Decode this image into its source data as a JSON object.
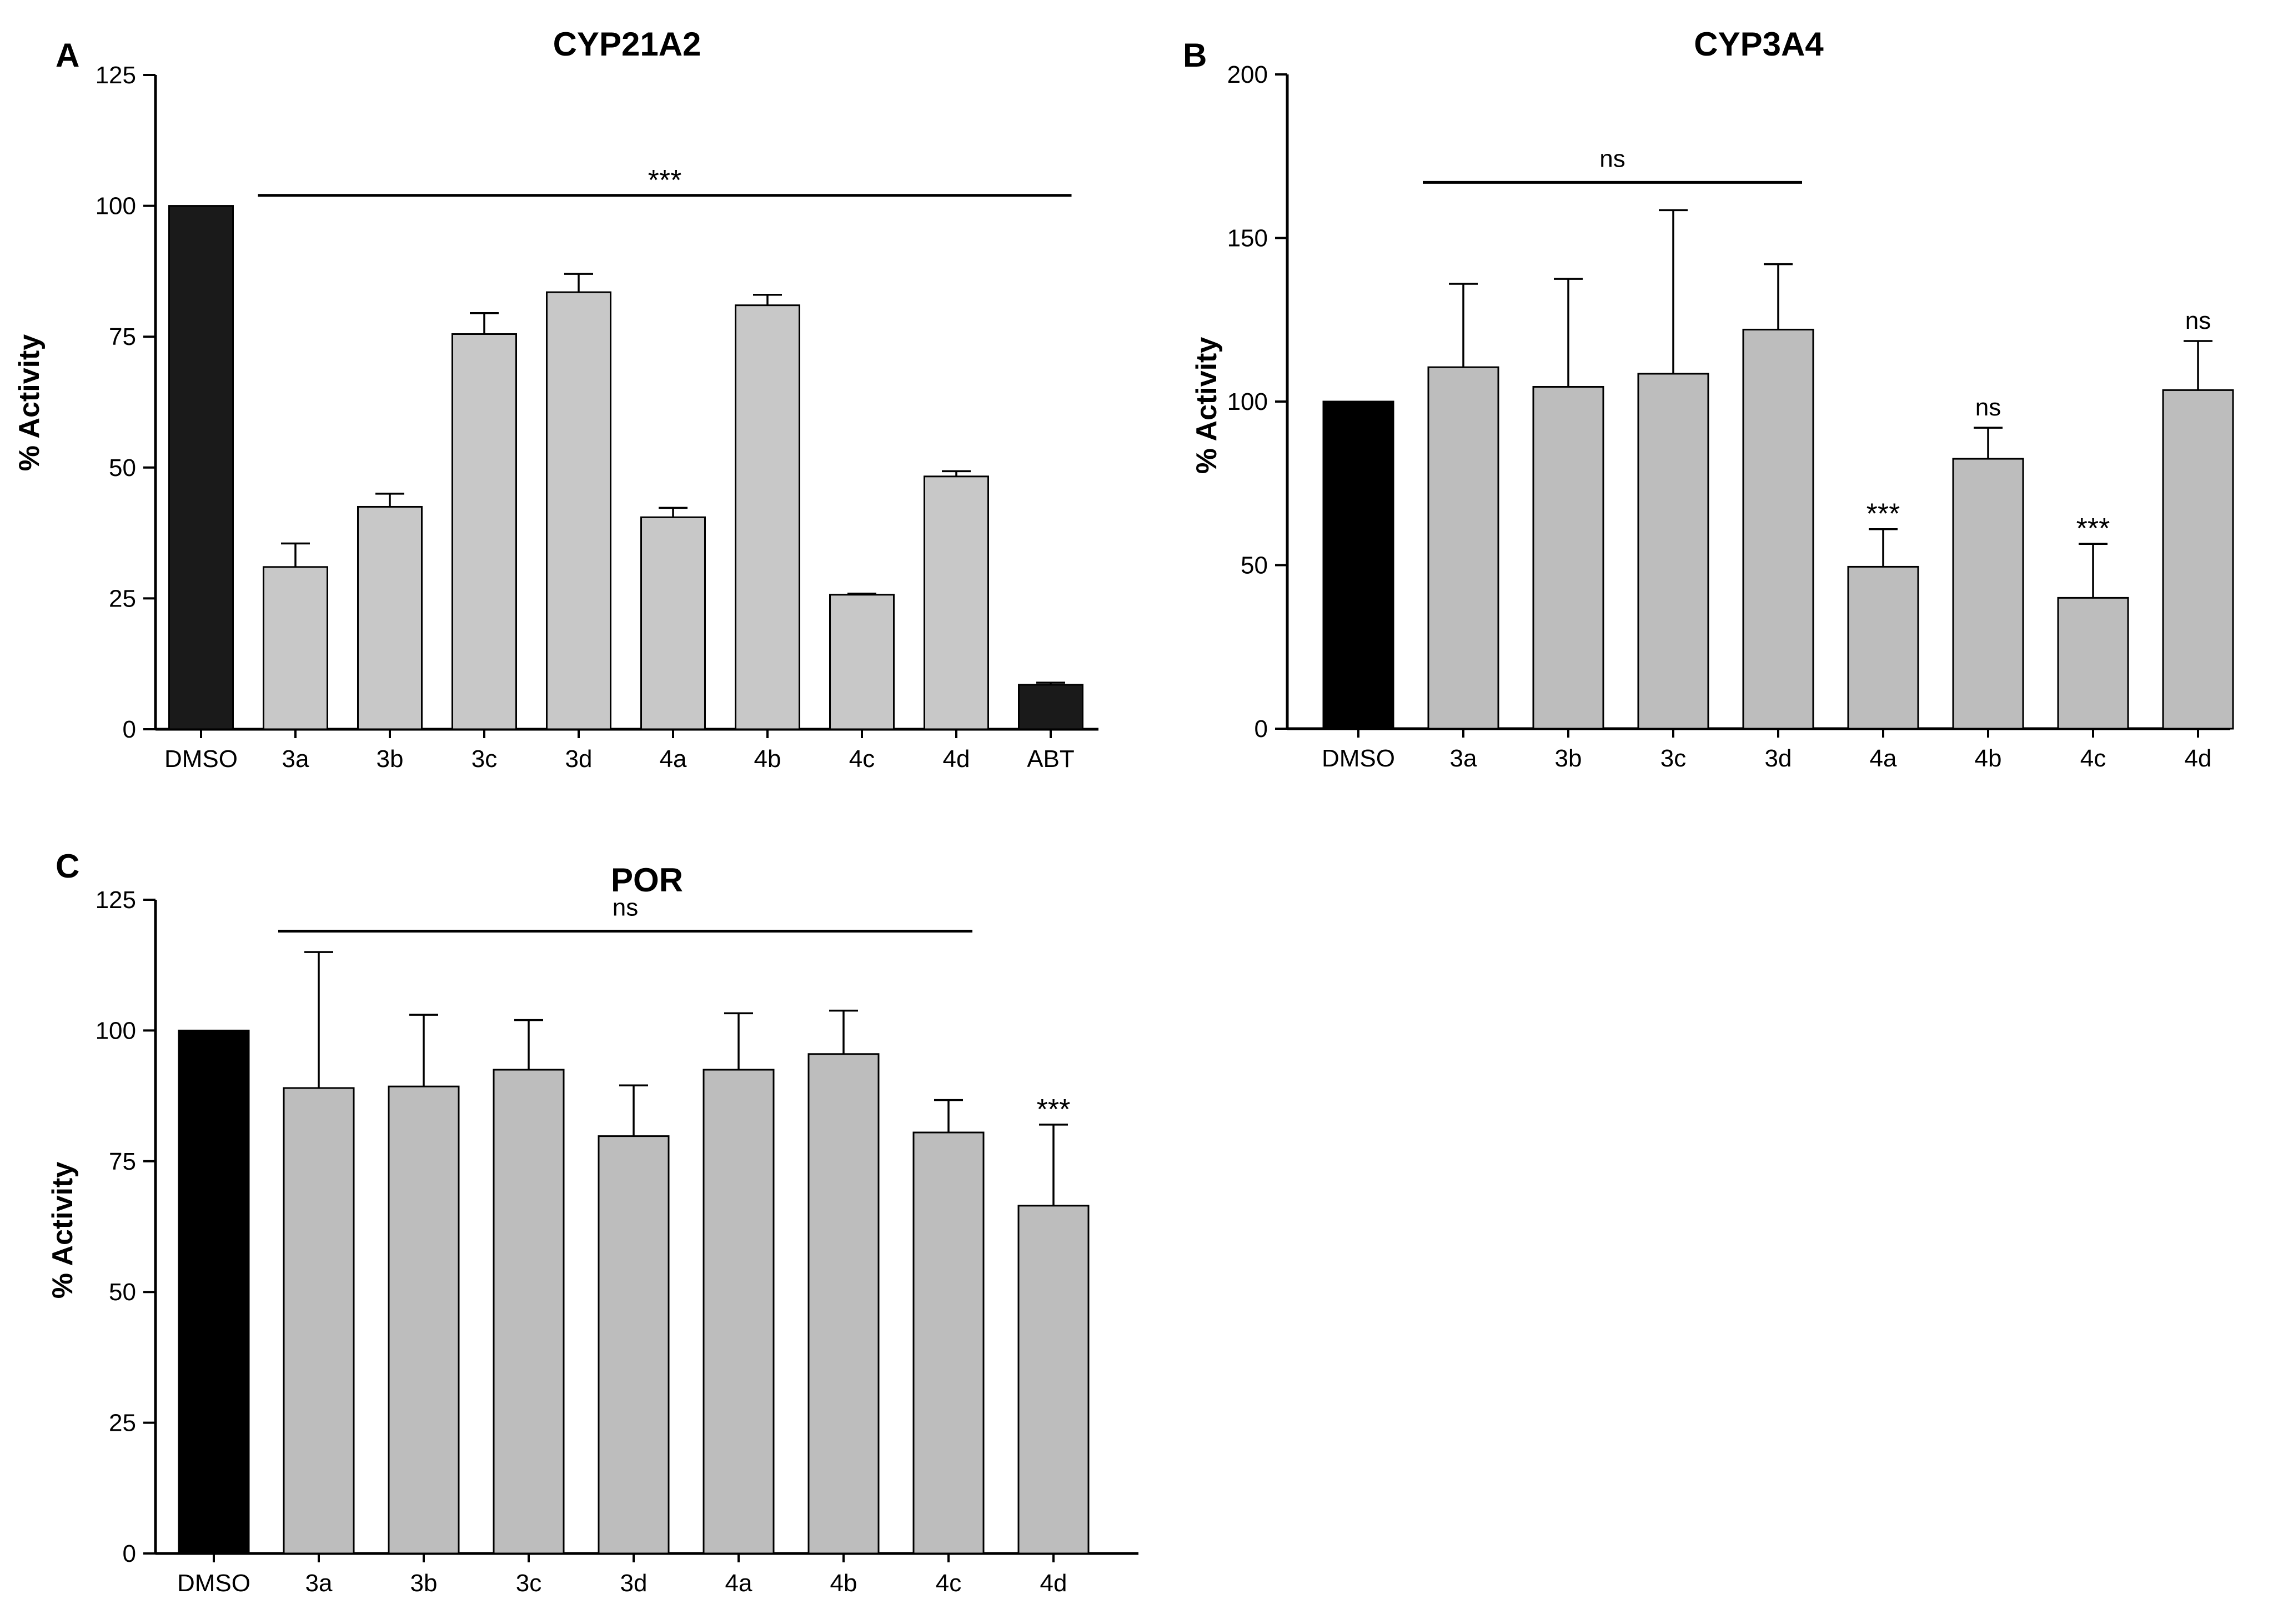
{
  "chart_data": [
    {
      "type": "bar",
      "panel": "A",
      "title": "CYP21A2",
      "ylabel": "% Activity",
      "xlabel": "",
      "ylim": [
        0,
        125
      ],
      "yticks": [
        0,
        25,
        50,
        75,
        100,
        125
      ],
      "categories": [
        "DMSO",
        "3a",
        "3b",
        "3c",
        "3d",
        "4a",
        "4b",
        "4c",
        "4d",
        "ABT"
      ],
      "values": [
        100,
        31,
        42.5,
        75.5,
        83.5,
        40.5,
        81,
        25.7,
        48.3,
        8.5
      ],
      "errors": [
        0,
        4.5,
        2.5,
        4,
        3.5,
        1.8,
        2,
        0.2,
        1,
        0.4
      ],
      "colors": [
        "#1a1a1a",
        "#c8c8c8",
        "#c8c8c8",
        "#c8c8c8",
        "#c8c8c8",
        "#c8c8c8",
        "#c8c8c8",
        "#c8c8c8",
        "#c8c8c8",
        "#1a1a1a"
      ],
      "bracket": {
        "from": "3a",
        "to": "ABT",
        "y": 102,
        "label": "***"
      },
      "bar_annotations": []
    },
    {
      "type": "bar",
      "panel": "B",
      "title": "CYP3A4",
      "ylabel": "% Activity",
      "xlabel": "",
      "ylim": [
        0,
        200
      ],
      "yticks": [
        0,
        50,
        100,
        150,
        200
      ],
      "categories": [
        "DMSO",
        "3a",
        "3b",
        "3c",
        "3d",
        "4a",
        "4b",
        "4c",
        "4d"
      ],
      "values": [
        100,
        110.5,
        104.5,
        108.5,
        122,
        49.5,
        82.5,
        40,
        103.5
      ],
      "errors": [
        0,
        25.5,
        33,
        50,
        20,
        11.5,
        9.5,
        16.5,
        15
      ],
      "colors": [
        "#000000",
        "#bdbdbd",
        "#bdbdbd",
        "#bdbdbd",
        "#bdbdbd",
        "#bdbdbd",
        "#bdbdbd",
        "#bdbdbd",
        "#bdbdbd"
      ],
      "bracket": {
        "from": "3a",
        "to": "3d",
        "y": 167,
        "label": "ns"
      },
      "bar_annotations": [
        {
          "category": "4a",
          "label": "***"
        },
        {
          "category": "4b",
          "label": "ns"
        },
        {
          "category": "4c",
          "label": "***"
        },
        {
          "category": "4d",
          "label": "ns"
        }
      ]
    },
    {
      "type": "bar",
      "panel": "C",
      "title": "POR",
      "ylabel": "% Activity",
      "xlabel": "",
      "ylim": [
        0,
        125
      ],
      "yticks": [
        0,
        25,
        50,
        75,
        100,
        125
      ],
      "categories": [
        "DMSO",
        "3a",
        "3b",
        "3c",
        "3d",
        "4a",
        "4b",
        "4c",
        "4d"
      ],
      "values": [
        100,
        89,
        89.3,
        92.5,
        79.8,
        92.5,
        95.5,
        80.5,
        66.5
      ],
      "errors": [
        0,
        26,
        13.7,
        9.5,
        9.7,
        10.8,
        8.3,
        6.2,
        15.5
      ],
      "colors": [
        "#000000",
        "#bdbdbd",
        "#bdbdbd",
        "#bdbdbd",
        "#bdbdbd",
        "#bdbdbd",
        "#bdbdbd",
        "#bdbdbd",
        "#bdbdbd"
      ],
      "bracket": {
        "from": "3a",
        "to": "4c",
        "y": 119,
        "label": "ns"
      },
      "bar_annotations": [
        {
          "category": "4d",
          "label": "***"
        }
      ]
    }
  ]
}
